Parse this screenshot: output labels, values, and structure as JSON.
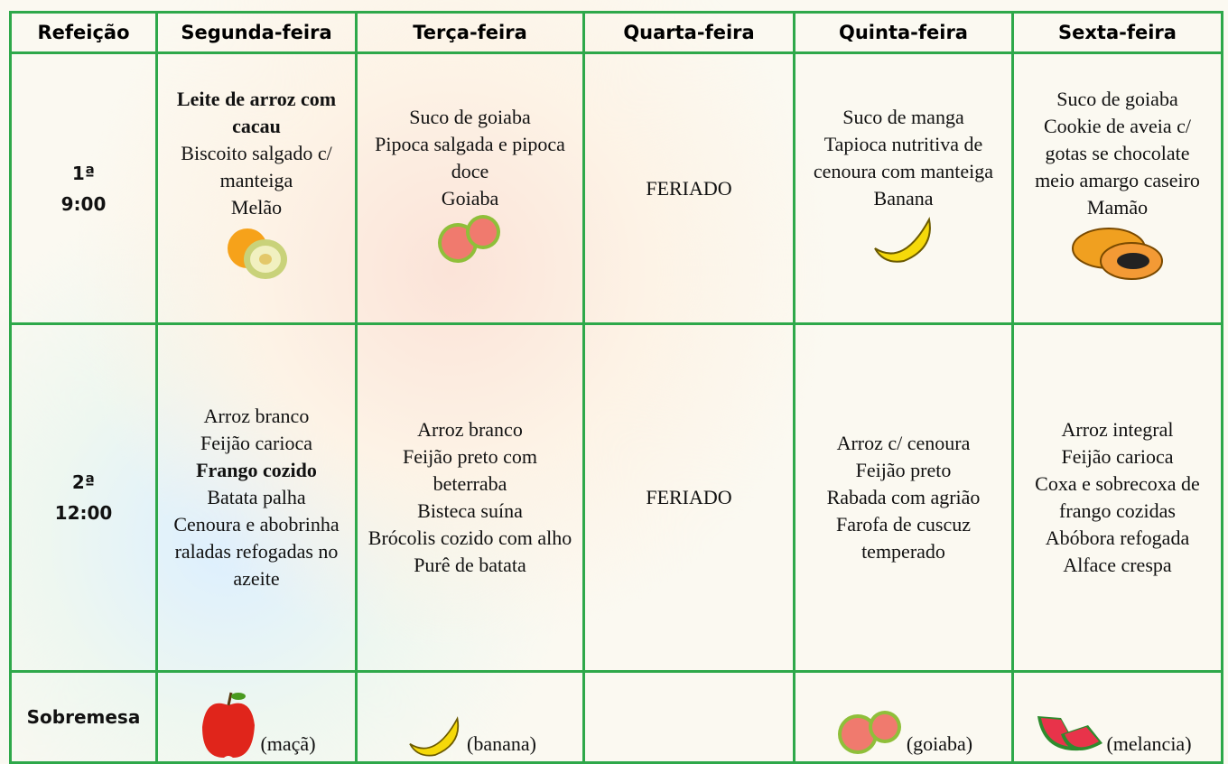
{
  "table": {
    "header": [
      "Refeição",
      "Segunda-feira",
      "Terça-feira",
      "Quarta-feira",
      "Quinta-feira",
      "Sexta-feira"
    ],
    "rows": [
      {
        "meal": [
          "1ª",
          "9:00"
        ],
        "cells": [
          [
            {
              "text": "Leite de arroz com cacau",
              "bold": true
            },
            "Biscoito salgado c/ manteiga",
            "Melão"
          ],
          [
            "Suco de goiaba",
            "Pipoca salgada e pipoca doce",
            "Goiaba"
          ],
          [
            "FERIADO"
          ],
          [
            "Suco de manga",
            "Tapioca nutritiva de cenoura com manteiga",
            "Banana"
          ],
          [
            "Suco de goiaba",
            "Cookie de aveia c/ gotas se chocolate meio amargo caseiro",
            "Mamão"
          ]
        ]
      },
      {
        "meal": [
          "2ª",
          "12:00"
        ],
        "cells": [
          [
            "Arroz branco",
            "Feijão carioca",
            {
              "text": "Frango cozido",
              "bold": true
            },
            "Batata palha",
            "Cenoura e abobrinha raladas refogadas no azeite"
          ],
          [
            "Arroz branco",
            "Feijão preto com beterraba",
            "Bisteca suína",
            "Brócolis cozido com alho",
            "Purê de batata"
          ],
          [
            "FERIADO"
          ],
          [
            "Arroz c/ cenoura",
            "Feijão preto",
            "Rabada com agrião",
            "Farofa de cuscuz temperado"
          ],
          [
            "Arroz integral",
            "Feijão carioca",
            "Coxa e sobrecoxa de frango cozidas",
            "Abóbora refogada",
            "Alface crespa"
          ]
        ]
      },
      {
        "meal": [
          "Sobremesa"
        ],
        "cells": [
          "(maçã)",
          "(banana)",
          null,
          "(goiaba)",
          "(melancia)"
        ]
      }
    ]
  }
}
